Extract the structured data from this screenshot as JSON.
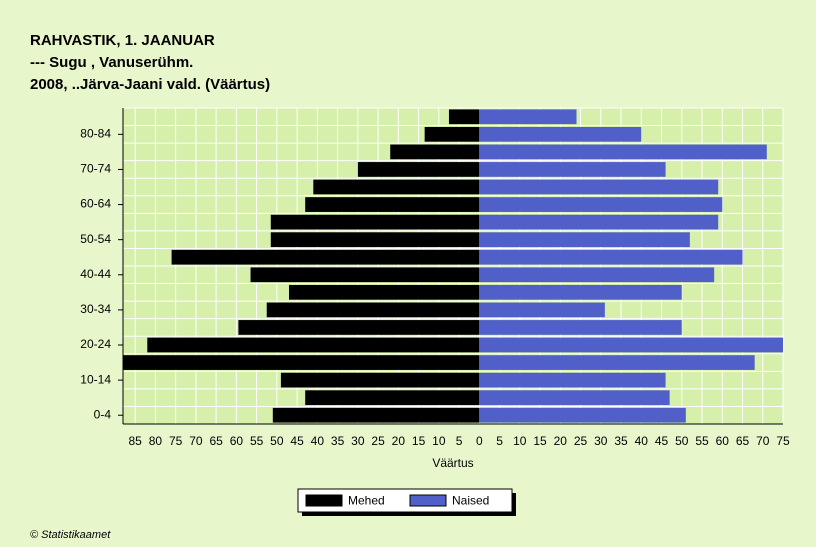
{
  "chart_data": {
    "type": "pyramid",
    "title": [
      "RAHVASTIK, 1. JAANUAR",
      "--- Sugu , Vanuserühm.",
      "2008, ..Järva-Jaani vald. (Väärtus)"
    ],
    "categories": [
      "0-4",
      null,
      "10-14",
      null,
      "20-24",
      null,
      "30-34",
      null,
      "40-44",
      null,
      "50-54",
      null,
      "60-64",
      null,
      "70-74",
      null,
      "80-84",
      null
    ],
    "series": [
      {
        "name": "Mehed",
        "color": "#000000",
        "values": [
          -51,
          -43,
          -49,
          -88,
          -82,
          -59.5,
          -52.5,
          -47,
          -56.5,
          -76,
          -51.5,
          -51.5,
          -43,
          -41,
          -30,
          -22,
          -13.5,
          -7.5
        ]
      },
      {
        "name": "Naised",
        "color": "#5060c8",
        "values": [
          51,
          47,
          46,
          68,
          75,
          50,
          31,
          50,
          58,
          65,
          52,
          59,
          60,
          59,
          46,
          71,
          40,
          24
        ]
      }
    ],
    "x_label": "Väärtus",
    "xlim": [
      -88,
      75
    ],
    "xticks": [
      {
        "value": -85,
        "label": "85"
      },
      {
        "value": -80,
        "label": "80"
      },
      {
        "value": -75,
        "label": "75"
      },
      {
        "value": -70,
        "label": "70"
      },
      {
        "value": -65,
        "label": "65"
      },
      {
        "value": -60,
        "label": "60"
      },
      {
        "value": -55,
        "label": "55"
      },
      {
        "value": -50,
        "label": "50"
      },
      {
        "value": -45,
        "label": "45"
      },
      {
        "value": -40,
        "label": "40"
      },
      {
        "value": -35,
        "label": "35"
      },
      {
        "value": -30,
        "label": "30"
      },
      {
        "value": -25,
        "label": "25"
      },
      {
        "value": -20,
        "label": "20"
      },
      {
        "value": -15,
        "label": "15"
      },
      {
        "value": -10,
        "label": "10"
      },
      {
        "value": -5,
        "label": "5"
      },
      0,
      5,
      10,
      15,
      20,
      25,
      30,
      35,
      40,
      45,
      50,
      55,
      60,
      65,
      70,
      75
    ],
    "grid": true,
    "legend": "bottom",
    "footer": "© Statistikaamet"
  }
}
